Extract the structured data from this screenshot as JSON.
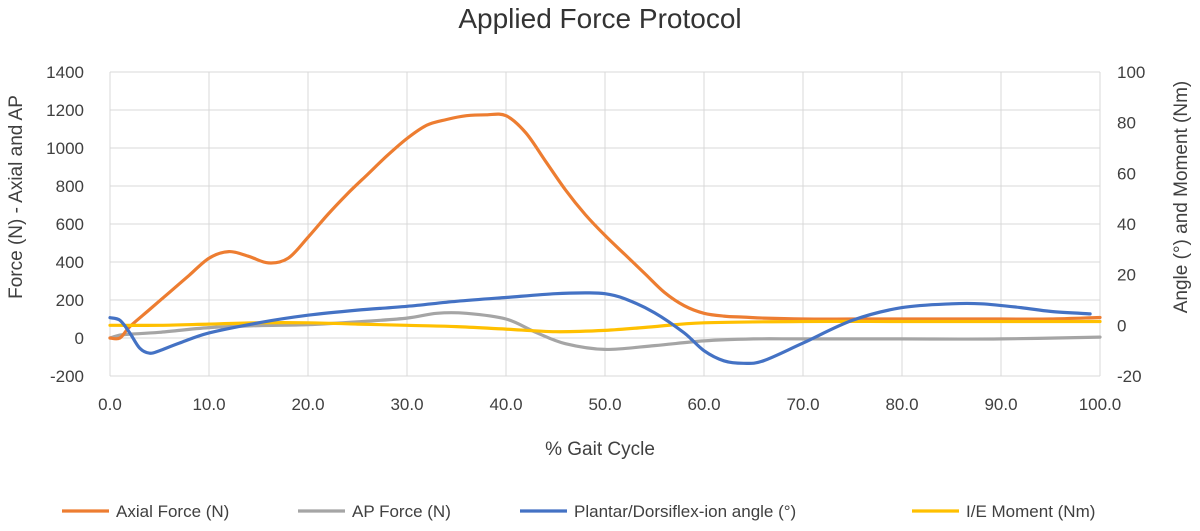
{
  "chart_data": {
    "type": "line",
    "title": "Applied Force Protocol",
    "xlabel": "% Gait Cycle",
    "ylabel": "Force (N) - Axial and AP",
    "y2label": "Angle (°) and Moment (Nm)",
    "xlim": [
      0,
      100
    ],
    "ylim": [
      -200,
      1400
    ],
    "y2lim": [
      -20,
      100
    ],
    "x_ticks": [
      "0.0",
      "10.0",
      "20.0",
      "30.0",
      "40.0",
      "50.0",
      "60.0",
      "70.0",
      "80.0",
      "90.0",
      "100.0"
    ],
    "y_ticks": [
      "-200",
      "0",
      "200",
      "400",
      "600",
      "800",
      "1000",
      "1200",
      "1400"
    ],
    "y2_ticks": [
      "-20",
      "0",
      "20",
      "40",
      "60",
      "80",
      "100"
    ],
    "grid": true,
    "legend_position": "bottom",
    "series": [
      {
        "name": "Axial Force (N)",
        "axis": "left",
        "color": "#ED7D31",
        "x": [
          0,
          1,
          2,
          4,
          6,
          8,
          10,
          12,
          14,
          16,
          18,
          20,
          22,
          24,
          26,
          28,
          30,
          32,
          34,
          36,
          38,
          40,
          42,
          44,
          46,
          48,
          50,
          52,
          54,
          56,
          58,
          60,
          62,
          64,
          66,
          70,
          75,
          80,
          85,
          90,
          95,
          100
        ],
        "y": [
          0,
          0,
          60,
          150,
          240,
          330,
          420,
          455,
          430,
          395,
          420,
          530,
          650,
          760,
          860,
          960,
          1050,
          1120,
          1150,
          1170,
          1175,
          1170,
          1080,
          930,
          780,
          650,
          540,
          440,
          340,
          240,
          170,
          130,
          115,
          110,
          105,
          100,
          100,
          100,
          100,
          100,
          100,
          108
        ]
      },
      {
        "name": "AP Force (N)",
        "axis": "left",
        "color": "#A5A5A5",
        "x": [
          0,
          1,
          2,
          5,
          10,
          15,
          20,
          25,
          30,
          33,
          36,
          40,
          43,
          46,
          50,
          55,
          60,
          65,
          70,
          80,
          90,
          100
        ],
        "y": [
          0,
          15,
          20,
          30,
          55,
          65,
          70,
          85,
          105,
          130,
          130,
          100,
          30,
          -30,
          -60,
          -40,
          -15,
          -5,
          -5,
          -5,
          -5,
          5
        ]
      },
      {
        "name": "Plantar/Dorsiflex-ion angle (°)",
        "axis": "right",
        "color": "#4472C4",
        "x": [
          0,
          1,
          2,
          3,
          4,
          5,
          7,
          10,
          15,
          20,
          25,
          30,
          35,
          40,
          45,
          48,
          50,
          52,
          55,
          58,
          60,
          62,
          64,
          66,
          70,
          75,
          80,
          85,
          88,
          92,
          95,
          99
        ],
        "y": [
          3,
          2,
          -3,
          -9,
          -11,
          -10,
          -7,
          -3,
          1,
          4,
          6,
          7.5,
          9.5,
          11,
          12.5,
          12.8,
          12.5,
          10.5,
          5,
          -3,
          -10,
          -14,
          -15,
          -14,
          -7,
          2,
          7,
          8.5,
          8.5,
          7,
          5.5,
          4.5
        ]
      },
      {
        "name": "I/E Moment (Nm)",
        "axis": "right",
        "color": "#FFC000",
        "x": [
          0,
          5,
          10,
          15,
          20,
          25,
          30,
          35,
          40,
          45,
          50,
          55,
          60,
          70,
          80,
          90,
          100
        ],
        "y": [
          0,
          0,
          0.5,
          1,
          1,
          0.5,
          0,
          -0.5,
          -1.5,
          -2.5,
          -2,
          -0.5,
          1,
          1.5,
          1.5,
          1.5,
          1.5
        ]
      }
    ]
  }
}
